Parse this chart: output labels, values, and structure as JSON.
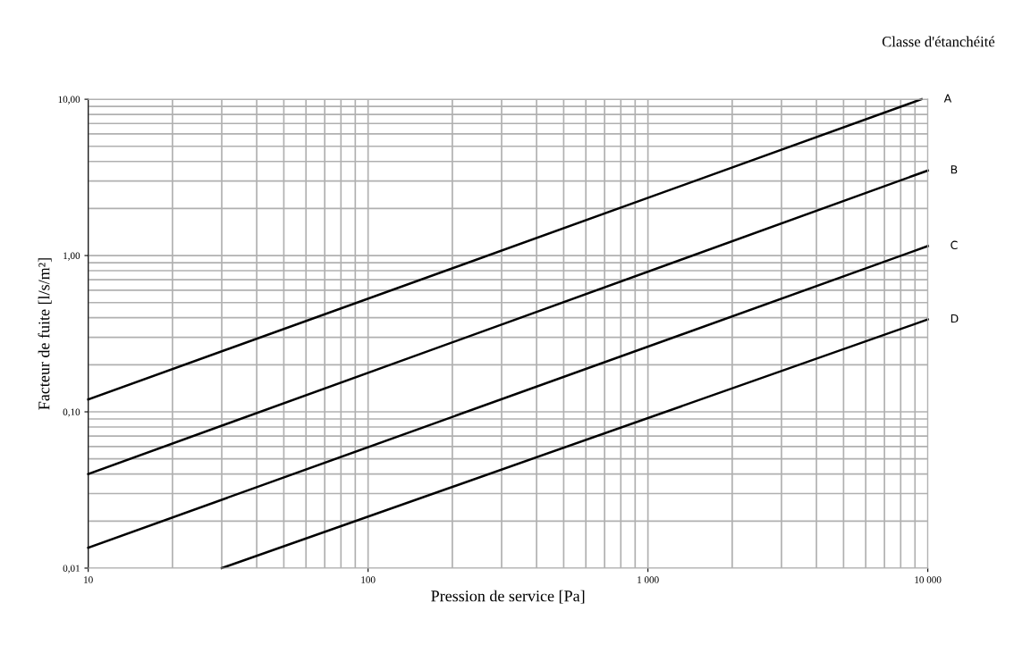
{
  "chart_data": {
    "type": "line",
    "xlabel": "Pression de service [Pa]",
    "ylabel": "Facteur de fuite [l/s/m²]",
    "legend_title": "Classe d'étanchéité",
    "log": "xy",
    "grid": true,
    "legend": false,
    "marker": "none",
    "line_style": "solid",
    "xlim": [
      10,
      10000
    ],
    "xticks": [
      10,
      100,
      {
        "value": 1000,
        "label": "1 000"
      },
      {
        "value": 10000,
        "label": "10 000"
      }
    ],
    "ylim": [
      0.01,
      10
    ],
    "yticks": [
      {
        "value": 0.01,
        "label": "0,01"
      },
      {
        "value": 0.1,
        "label": "0,10"
      },
      {
        "value": 1,
        "label": "1,00"
      },
      {
        "value": 10,
        "label": "10,00"
      }
    ],
    "series": [
      {
        "name": "A",
        "color": "#000000",
        "x": [
          10,
          9500
        ],
        "values": [
          0.12,
          10
        ]
      },
      {
        "name": "B",
        "color": "#000000",
        "x": [
          10,
          10000
        ],
        "values": [
          0.04,
          3.5
        ]
      },
      {
        "name": "C",
        "color": "#000000",
        "x": [
          10,
          10000
        ],
        "values": [
          0.0135,
          1.15
        ]
      },
      {
        "name": "D",
        "color": "#000000",
        "x": [
          30,
          10000
        ],
        "values": [
          0.01,
          0.39
        ]
      }
    ]
  }
}
